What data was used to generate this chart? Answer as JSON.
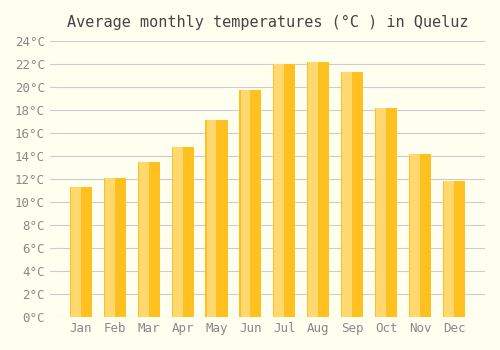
{
  "title": "Average monthly temperatures (°C ) in Queluz",
  "categories": [
    "Jan",
    "Feb",
    "Mar",
    "Apr",
    "May",
    "Jun",
    "Jul",
    "Aug",
    "Sep",
    "Oct",
    "Nov",
    "Dec"
  ],
  "values": [
    11.3,
    12.1,
    13.5,
    14.8,
    17.1,
    19.7,
    22.0,
    22.2,
    21.3,
    18.2,
    14.2,
    11.8
  ],
  "bar_color_top": "#FFC125",
  "bar_color_bottom": "#FFD96A",
  "background_color": "#FFFFF0",
  "ylim": [
    0,
    24
  ],
  "ytick_step": 2,
  "title_fontsize": 11,
  "tick_fontsize": 9,
  "grid_color": "#CCCCCC"
}
